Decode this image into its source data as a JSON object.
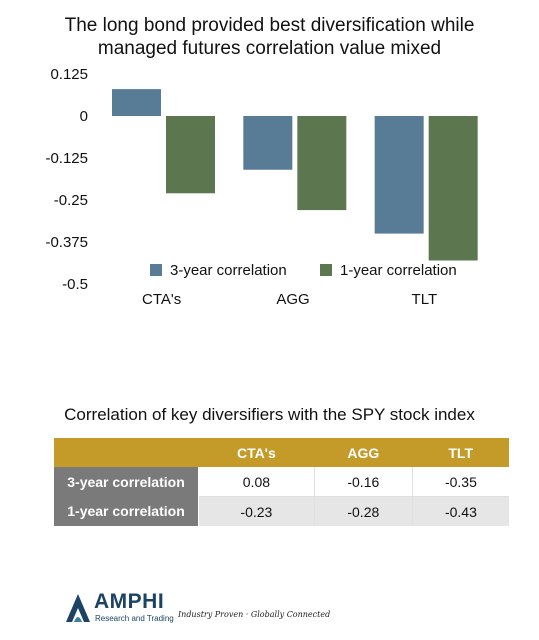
{
  "chart_data": {
    "type": "bar",
    "title": [
      "The long bond provided best diversification while",
      "managed futures correlation value mixed"
    ],
    "categories": [
      "CTA's",
      "AGG",
      "TLT"
    ],
    "series": [
      {
        "name": "3-year correlation",
        "values": [
          0.08,
          -0.16,
          -0.35
        ],
        "color": "#587b96"
      },
      {
        "name": "1-year correlation",
        "values": [
          -0.23,
          -0.28,
          -0.43
        ],
        "color": "#5c7750"
      }
    ],
    "yticks": [
      "0.125",
      "0",
      "-0.125",
      "-0.25",
      "-0.375",
      "-0.5"
    ],
    "ylim": [
      -0.5,
      0.125
    ],
    "legend": "bottom-inside",
    "grid": false
  },
  "table": {
    "title": "Correlation of key diversifiers with the SPY stock index",
    "header": [
      "",
      "CTA's",
      "AGG",
      "TLT"
    ],
    "rows": [
      {
        "label": "3-year correlation",
        "cells": [
          "0.08",
          "-0.16",
          "-0.35"
        ]
      },
      {
        "label": "1-year correlation",
        "cells": [
          "-0.23",
          "-0.28",
          "-0.43"
        ]
      }
    ],
    "header_color": "#c49a28",
    "row_label_color": "#7a7a7a"
  },
  "footer": {
    "logo_name": "AMPHI",
    "logo_subtitle": "Research and Trading",
    "tagline": "Industry Proven · Globally Connected",
    "logo_color": "#1c4366",
    "logo_icon": "amphi-triangle-logo-icon"
  }
}
